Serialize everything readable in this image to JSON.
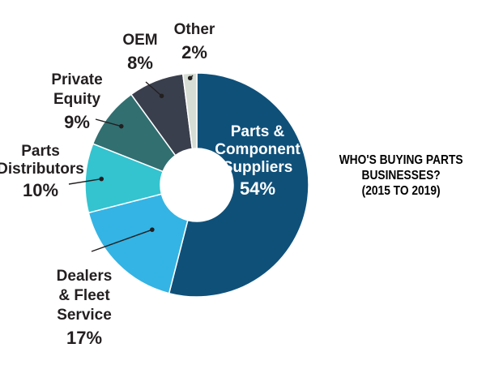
{
  "chart_data": {
    "type": "pie",
    "donut": true,
    "title_lines": [
      "WHO'S BUYING PARTS",
      "BUSINESSES?",
      "(2015 TO 2019)"
    ],
    "slices": [
      {
        "label_lines": [
          "Parts &",
          "Component",
          "Suppliers"
        ],
        "pct_label": "54%",
        "value": 54,
        "color": "#0f5079"
      },
      {
        "label_lines": [
          "Dealers",
          "& Fleet",
          "Service"
        ],
        "pct_label": "17%",
        "value": 17,
        "color": "#34b4e4"
      },
      {
        "label_lines": [
          "Parts",
          "Distributors"
        ],
        "pct_label": "10%",
        "value": 10,
        "color": "#33c4d0"
      },
      {
        "label_lines": [
          "Private",
          "Equity"
        ],
        "pct_label": "9%",
        "value": 9,
        "color": "#316f71"
      },
      {
        "label_lines": [
          "OEM"
        ],
        "pct_label": "8%",
        "value": 8,
        "color": "#3a3f4d"
      },
      {
        "label_lines": [
          "Other"
        ],
        "pct_label": "2%",
        "value": 2,
        "color": "#d6ddd4"
      }
    ]
  }
}
